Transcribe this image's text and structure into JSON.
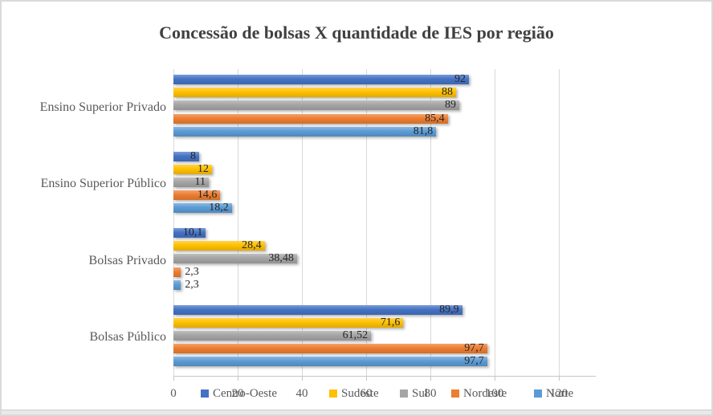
{
  "chart_data": {
    "type": "bar",
    "orientation": "horizontal",
    "title": "Concessão de bolsas X quantidade de IES por região",
    "categories": [
      "Ensino Superior Privado",
      "Ensino Superior Público",
      "Bolsas Privado",
      "Bolsas Público"
    ],
    "series": [
      {
        "name": "Centro-Oeste",
        "color": "#4472C4",
        "values": [
          92,
          8,
          10.1,
          89.9
        ],
        "labels": [
          "92",
          "8",
          "10,1",
          "89,9"
        ]
      },
      {
        "name": "Sudeste",
        "color": "#FFC000",
        "values": [
          88,
          12,
          28.4,
          71.6
        ],
        "labels": [
          "88",
          "12",
          "28,4",
          "71,6"
        ]
      },
      {
        "name": "Sul",
        "color": "#A5A5A5",
        "values": [
          89,
          11,
          38.48,
          61.52
        ],
        "labels": [
          "89",
          "11",
          "38,48",
          "61,52"
        ]
      },
      {
        "name": "Nordeste",
        "color": "#ED7D31",
        "values": [
          85.4,
          14.6,
          2.3,
          97.7
        ],
        "labels": [
          "85,4",
          "14,6",
          "2,3",
          "97,7"
        ]
      },
      {
        "name": "Norte",
        "color": "#5B9BD5",
        "values": [
          81.8,
          18.2,
          2.3,
          97.7
        ],
        "labels": [
          "81,8",
          "18,2",
          "2,3",
          "97,7"
        ]
      }
    ],
    "x_axis": {
      "ticks": [
        "0",
        "20",
        "40",
        "60",
        "80",
        "100",
        "120"
      ],
      "values": [
        0,
        20,
        40,
        60,
        80,
        100,
        120
      ],
      "min": 0,
      "max": 120
    },
    "legend": {
      "position": "bottom"
    },
    "grid": true,
    "data_labels": "inside-end"
  },
  "colors": {
    "grid": "#D9D9D9",
    "axis": "#C6C6C6",
    "title": "#404040",
    "muted_text": "#595959",
    "data_label": "#262626",
    "border": "#DADADA"
  }
}
